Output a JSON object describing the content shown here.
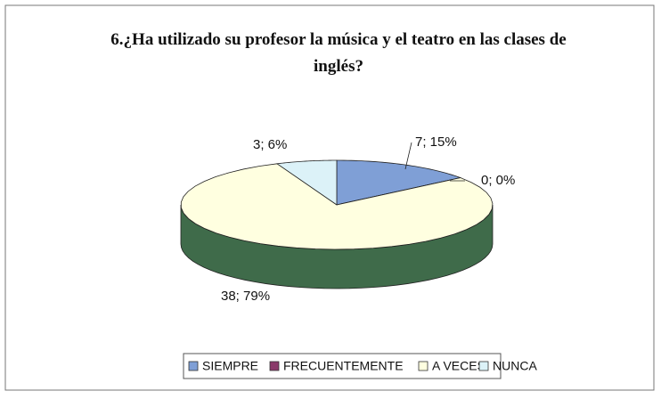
{
  "chart_data": {
    "type": "pie3d",
    "title": "6.¿Ha utilizado su profesor la música y el teatro en las clases de inglés?",
    "categories": [
      "SIEMPRE",
      "FRECUENTEMENTE",
      "A VECES",
      "NUNCA"
    ],
    "values": [
      7,
      0,
      38,
      3
    ],
    "value_labels": [
      "7; 15%",
      "0; 0%",
      "38; 79%",
      "3; 6%"
    ],
    "colors": [
      "#7f9fd6",
      "#8a3a6a",
      "#ffffe0",
      "#dcf2f8"
    ],
    "side_colors": [
      "#4f6f9e",
      "#5a2040",
      "#3f6b4a",
      "#8fb2bb"
    ],
    "legend": "bottom"
  }
}
